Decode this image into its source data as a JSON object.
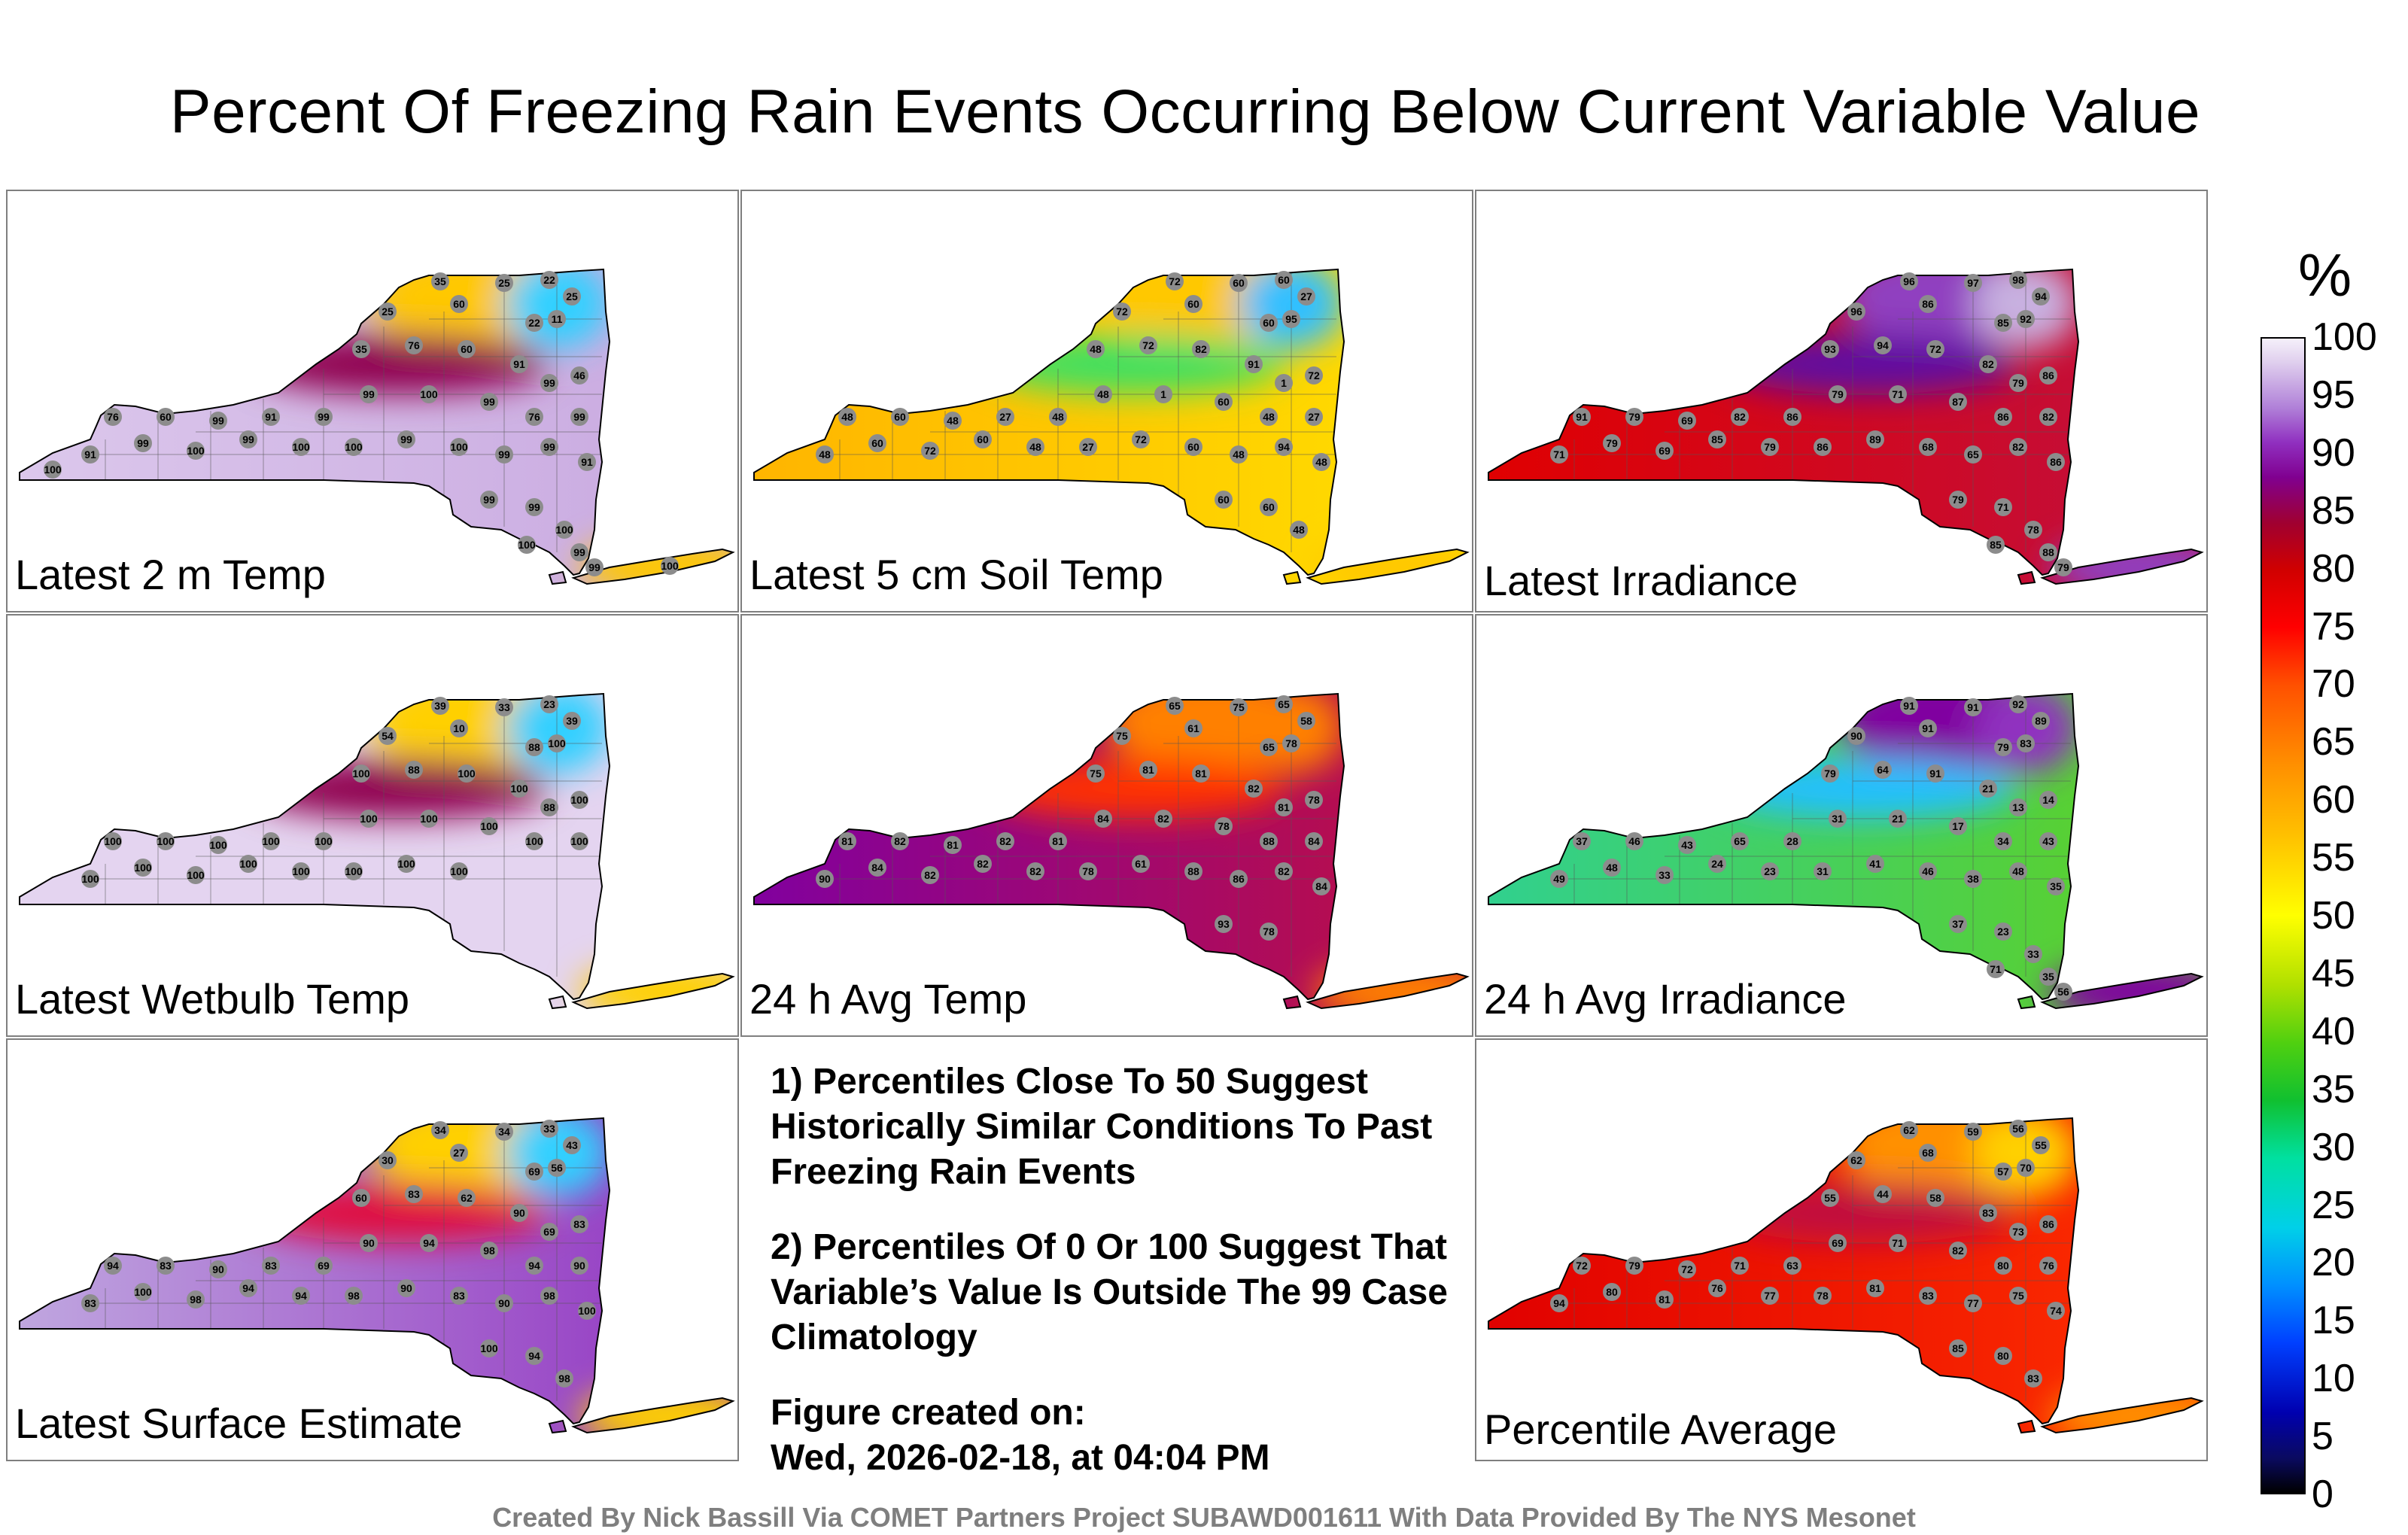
{
  "title": "Percent Of Freezing Rain Events Occurring Below Current Variable Value",
  "panels": [
    {
      "id": "temp2m",
      "label": "Latest 2 m Temp",
      "colors": {
        "west": "#dcc8ec",
        "east": "#c8a8e0",
        "north": "#ffc800",
        "ne": "#30d0ff",
        "band": "#900050"
      },
      "stations": [
        "35",
        "25",
        "22",
        "25",
        "25",
        "60",
        "22",
        "11",
        "35",
        "76",
        "60",
        "91",
        "99",
        "46",
        "76",
        "60",
        "99",
        "91",
        "99",
        "99",
        "100",
        "99",
        "76",
        "99",
        "91",
        "99",
        "100",
        "99",
        "100",
        "100",
        "99",
        "100",
        "99",
        "99",
        "91",
        "99",
        "99",
        "100",
        "99",
        "100",
        "99",
        "100",
        "100"
      ]
    },
    {
      "id": "soil5cm",
      "label": "Latest 5 cm Soil Temp",
      "colors": {
        "west": "#ffb400",
        "east": "#ffe000",
        "north": "#ffc800",
        "ne": "#30c0ff",
        "band": "#40e060"
      },
      "stations": [
        "72",
        "60",
        "60",
        "27",
        "72",
        "60",
        "60",
        "95",
        "48",
        "72",
        "82",
        "91",
        "1",
        "72",
        "48",
        "60",
        "48",
        "27",
        "48",
        "48",
        "1",
        "60",
        "48",
        "27",
        "48",
        "60",
        "72",
        "60",
        "48",
        "27",
        "72",
        "60",
        "48",
        "94",
        "48",
        "60",
        "60",
        "48"
      ]
    },
    {
      "id": "irradiance",
      "label": "Latest Irradiance",
      "colors": {
        "west": "#e00000",
        "east": "#c01040",
        "north": "#9040c0",
        "ne": "#c8b0e0",
        "band": "#6010a0"
      },
      "stations": [
        "96",
        "97",
        "98",
        "94",
        "96",
        "86",
        "85",
        "92",
        "93",
        "94",
        "72",
        "82",
        "79",
        "86",
        "91",
        "79",
        "69",
        "82",
        "86",
        "79",
        "71",
        "87",
        "86",
        "82",
        "71",
        "79",
        "69",
        "85",
        "79",
        "86",
        "89",
        "68",
        "65",
        "82",
        "86",
        "79",
        "71",
        "78",
        "88",
        "85",
        "79"
      ]
    },
    {
      "id": "wetbulb",
      "label": "Latest Wetbulb Temp",
      "colors": {
        "west": "#e4d4f0",
        "east": "#e4d4f0",
        "north": "#ffd000",
        "ne": "#30d0ff",
        "band": "#900050"
      },
      "stations": [
        "39",
        "33",
        "23",
        "39",
        "54",
        "10",
        "88",
        "100",
        "100",
        "88",
        "100",
        "100",
        "88",
        "100",
        "100",
        "100",
        "100",
        "100",
        "100",
        "100",
        "100",
        "100",
        "100",
        "100",
        "100",
        "100",
        "100",
        "100",
        "100",
        "100",
        "100",
        "100"
      ]
    },
    {
      "id": "avgtemp24h",
      "label": "24 h Avg Temp",
      "colors": {
        "west": "#8000a0",
        "east": "#c01040",
        "north": "#ff8000",
        "ne": "#ff8000",
        "band": "#ff3000"
      },
      "stations": [
        "65",
        "75",
        "65",
        "58",
        "75",
        "61",
        "65",
        "78",
        "75",
        "81",
        "81",
        "82",
        "81",
        "78",
        "81",
        "82",
        "81",
        "82",
        "81",
        "84",
        "82",
        "78",
        "88",
        "84",
        "90",
        "84",
        "82",
        "82",
        "82",
        "78",
        "61",
        "88",
        "86",
        "82",
        "84",
        "93",
        "78"
      ]
    },
    {
      "id": "avgirr24h",
      "label": "24 h Avg Irradiance",
      "colors": {
        "west": "#30d090",
        "east": "#60d020",
        "north": "#8000a0",
        "ne": "#9030c0",
        "band": "#20c0ff"
      },
      "stations": [
        "91",
        "91",
        "92",
        "89",
        "90",
        "91",
        "79",
        "83",
        "79",
        "64",
        "91",
        "21",
        "13",
        "14",
        "37",
        "46",
        "43",
        "65",
        "28",
        "31",
        "21",
        "17",
        "34",
        "43",
        "49",
        "48",
        "33",
        "24",
        "23",
        "31",
        "41",
        "46",
        "38",
        "48",
        "35",
        "37",
        "23",
        "33",
        "35",
        "71",
        "56"
      ]
    },
    {
      "id": "sfcestimate",
      "label": "Latest Surface Estimate",
      "colors": {
        "west": "#c0a8e0",
        "east": "#9030c0",
        "north": "#ffd000",
        "ne": "#30d0ff",
        "band": "#e01040"
      },
      "stations": [
        "34",
        "34",
        "33",
        "43",
        "30",
        "27",
        "69",
        "56",
        "60",
        "83",
        "62",
        "90",
        "69",
        "83",
        "94",
        "83",
        "90",
        "83",
        "69",
        "90",
        "94",
        "98",
        "94",
        "90",
        "83",
        "100",
        "98",
        "94",
        "94",
        "98",
        "90",
        "83",
        "90",
        "98",
        "100",
        "100",
        "94",
        "98"
      ]
    },
    {
      "id": "average",
      "label": "Percentile Average",
      "colors": {
        "west": "#e00000",
        "east": "#ff3000",
        "north": "#ff9000",
        "ne": "#ffd000",
        "band": "#c01040"
      },
      "stations": [
        "62",
        "59",
        "56",
        "55",
        "62",
        "68",
        "57",
        "70",
        "55",
        "44",
        "58",
        "83",
        "73",
        "86",
        "72",
        "79",
        "72",
        "71",
        "63",
        "69",
        "71",
        "82",
        "80",
        "76",
        "94",
        "80",
        "81",
        "76",
        "77",
        "78",
        "81",
        "83",
        "77",
        "75",
        "74",
        "85",
        "80",
        "83"
      ]
    }
  ],
  "notes": {
    "note1": "1) Percentiles Close To 50 Suggest Historically Similar Conditions To Past Freezing Rain Events",
    "note2": "2) Percentiles Of 0 Or 100 Suggest That Variable’s Value Is Outside The 99 Case Climatology",
    "created_label": "Figure created on:",
    "created_date": "Wed, 2026-02-18, at 04:04 PM"
  },
  "colorbar": {
    "unit": "%",
    "ticks": [
      "0",
      "5",
      "10",
      "15",
      "20",
      "25",
      "30",
      "35",
      "40",
      "45",
      "50",
      "55",
      "60",
      "65",
      "70",
      "75",
      "80",
      "85",
      "90",
      "95",
      "100"
    ]
  },
  "footer": "Created By Nick Bassill Via COMET Partners Project SUBAWD001611 With Data Provided By The NYS Mesonet"
}
